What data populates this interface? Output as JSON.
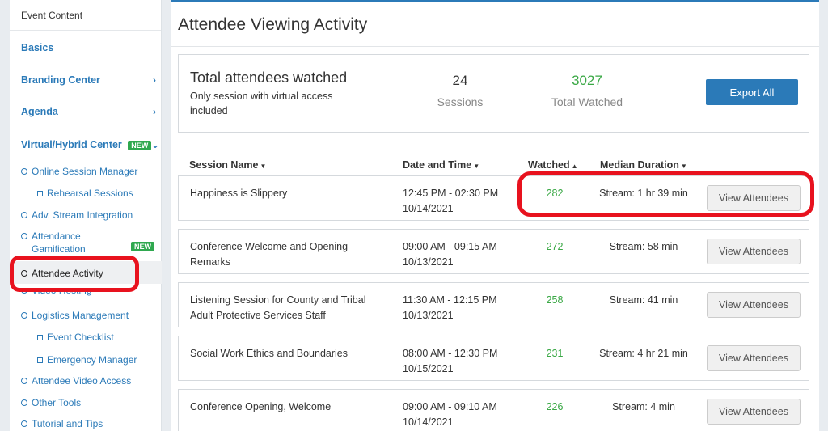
{
  "sidebar": {
    "header": "Event Content",
    "basics": "Basics",
    "branding_center": "Branding Center",
    "agenda": "Agenda",
    "virtual_hybrid_center": "Virtual/Hybrid Center",
    "new_badge": "NEW",
    "online_session_manager": "Online Session Manager",
    "rehearsal_sessions": "Rehearsal Sessions",
    "adv_stream_integration": "Adv. Stream Integration",
    "attendance_gamification_1": "Attendance",
    "attendance_gamification_2": "Gamification",
    "attendee_activity": "Attendee Activity",
    "video_hosting": "Video Hosting",
    "logistics_management": "Logistics Management",
    "event_checklist": "Event Checklist",
    "emergency_manager": "Emergency Manager",
    "attendee_video_access": "Attendee Video Access",
    "other_tools": "Other Tools",
    "tutorial_and_tips": "Tutorial and Tips"
  },
  "page_title": "Attendee Viewing Activity",
  "summary": {
    "title": "Total attendees watched",
    "note": "Only session with virtual access included",
    "sessions_value": "24",
    "sessions_label": "Sessions",
    "watched_value": "3027",
    "watched_label": "Total Watched",
    "export_label": "Export All"
  },
  "table": {
    "headers": {
      "session_name": "Session Name",
      "date_time": "Date and Time",
      "watched": "Watched",
      "median_duration": "Median Duration"
    },
    "view_label": "View Attendees",
    "rows": [
      {
        "name": "Happiness is Slippery",
        "time": "12:45 PM - 02:30 PM",
        "date": "10/14/2021",
        "watched": "282",
        "duration": "Stream: 1 hr 39 min"
      },
      {
        "name": "Conference Welcome and Opening Remarks",
        "time": "09:00 AM - 09:15 AM",
        "date": "10/13/2021",
        "watched": "272",
        "duration": "Stream: 58 min"
      },
      {
        "name": "Listening Session for County and Tribal Adult Protective Services Staff",
        "time": "11:30 AM - 12:15 PM",
        "date": "10/13/2021",
        "watched": "258",
        "duration": "Stream: 41 min"
      },
      {
        "name": "Social Work Ethics and Boundaries",
        "time": "08:00 AM - 12:30 PM",
        "date": "10/15/2021",
        "watched": "231",
        "duration": "Stream: 4 hr 21 min"
      },
      {
        "name": "Conference Opening, Welcome",
        "time": "09:00 AM - 09:10 AM",
        "date": "10/14/2021",
        "watched": "226",
        "duration": "Stream: 4 min"
      }
    ]
  },
  "colors": {
    "accent_blue": "#2b7ab8",
    "watched_green": "#3aa845",
    "highlight_red": "#e8121e"
  }
}
